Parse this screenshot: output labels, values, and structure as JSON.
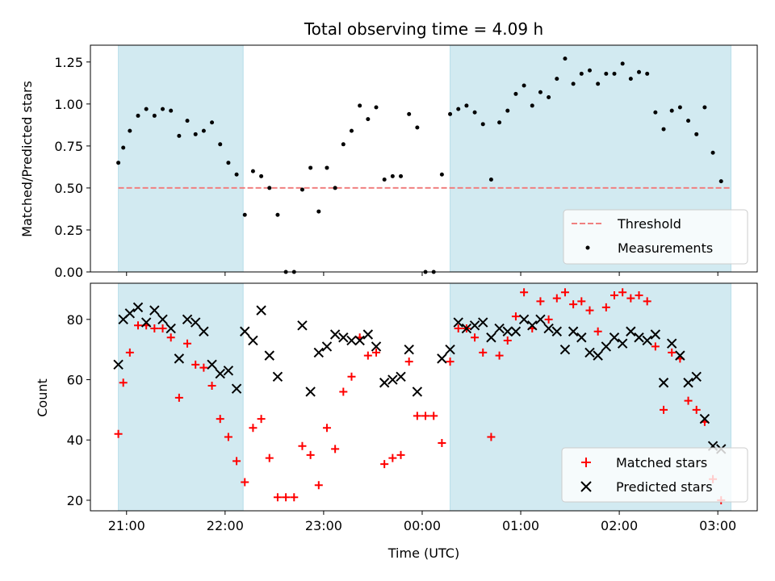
{
  "title": "Total observing time = 4.09 h",
  "colors": {
    "shade": "#add8e6",
    "threshold": "#f08080",
    "measurement": "#000000",
    "matched": "#ff0000",
    "predicted": "#000000"
  },
  "chart_data": [
    {
      "type": "scatter",
      "ylabel": "Matched/Predicted stars",
      "ylim": [
        0,
        1.35
      ],
      "yticks": [
        "0.00",
        "0.25",
        "0.50",
        "0.75",
        "1.00",
        "1.25"
      ],
      "ytick_values": [
        0,
        0.25,
        0.5,
        0.75,
        1.0,
        1.25
      ],
      "legend_position": "lower-right",
      "legend": [
        "Threshold",
        "Measurements"
      ],
      "threshold": 0.5,
      "shaded_intervals": [
        [
          "20:55",
          "22:11"
        ],
        [
          "00:17",
          "03:08"
        ]
      ],
      "series": [
        {
          "name": "Measurements",
          "points": [
            [
              "20:55",
              0.65
            ],
            [
              "20:58",
              0.74
            ],
            [
              "21:02",
              0.84
            ],
            [
              "21:07",
              0.93
            ],
            [
              "21:12",
              0.97
            ],
            [
              "21:17",
              0.93
            ],
            [
              "21:22",
              0.97
            ],
            [
              "21:27",
              0.96
            ],
            [
              "21:32",
              0.81
            ],
            [
              "21:37",
              0.9
            ],
            [
              "21:42",
              0.82
            ],
            [
              "21:47",
              0.84
            ],
            [
              "21:52",
              0.89
            ],
            [
              "21:57",
              0.76
            ],
            [
              "22:02",
              0.65
            ],
            [
              "22:07",
              0.58
            ],
            [
              "22:12",
              0.34
            ],
            [
              "22:17",
              0.6
            ],
            [
              "22:22",
              0.57
            ],
            [
              "22:27",
              0.5
            ],
            [
              "22:32",
              0.34
            ],
            [
              "22:37",
              0.0
            ],
            [
              "22:42",
              0.0
            ],
            [
              "22:47",
              0.49
            ],
            [
              "22:52",
              0.62
            ],
            [
              "22:57",
              0.36
            ],
            [
              "23:02",
              0.62
            ],
            [
              "23:07",
              0.5
            ],
            [
              "23:12",
              0.76
            ],
            [
              "23:17",
              0.84
            ],
            [
              "23:22",
              0.99
            ],
            [
              "23:27",
              0.91
            ],
            [
              "23:32",
              0.98
            ],
            [
              "23:37",
              0.55
            ],
            [
              "23:42",
              0.57
            ],
            [
              "23:47",
              0.57
            ],
            [
              "23:52",
              0.94
            ],
            [
              "23:57",
              0.86
            ],
            [
              "00:02",
              0.0
            ],
            [
              "00:07",
              0.0
            ],
            [
              "00:12",
              0.58
            ],
            [
              "00:17",
              0.94
            ],
            [
              "00:22",
              0.97
            ],
            [
              "00:27",
              0.99
            ],
            [
              "00:32",
              0.95
            ],
            [
              "00:37",
              0.88
            ],
            [
              "00:42",
              0.55
            ],
            [
              "00:47",
              0.89
            ],
            [
              "00:52",
              0.96
            ],
            [
              "00:57",
              1.06
            ],
            [
              "01:02",
              1.11
            ],
            [
              "01:07",
              0.99
            ],
            [
              "01:12",
              1.07
            ],
            [
              "01:17",
              1.04
            ],
            [
              "01:22",
              1.15
            ],
            [
              "01:27",
              1.27
            ],
            [
              "01:32",
              1.12
            ],
            [
              "01:37",
              1.18
            ],
            [
              "01:42",
              1.2
            ],
            [
              "01:47",
              1.12
            ],
            [
              "01:52",
              1.18
            ],
            [
              "01:57",
              1.18
            ],
            [
              "02:02",
              1.24
            ],
            [
              "02:07",
              1.15
            ],
            [
              "02:12",
              1.19
            ],
            [
              "02:17",
              1.18
            ],
            [
              "02:22",
              0.95
            ],
            [
              "02:27",
              0.85
            ],
            [
              "02:32",
              0.96
            ],
            [
              "02:37",
              0.98
            ],
            [
              "02:42",
              0.9
            ],
            [
              "02:47",
              0.82
            ],
            [
              "02:52",
              0.98
            ],
            [
              "02:57",
              0.71
            ],
            [
              "03:02",
              0.54
            ]
          ]
        }
      ]
    },
    {
      "type": "scatter",
      "xlabel": "Time (UTC)",
      "ylabel": "Count",
      "ylim": [
        16.5,
        92
      ],
      "yticks": [
        "20",
        "40",
        "60",
        "80"
      ],
      "ytick_values": [
        20,
        40,
        60,
        80
      ],
      "xticks": [
        "21:00",
        "22:00",
        "23:00",
        "00:00",
        "01:00",
        "02:00",
        "03:00"
      ],
      "legend_position": "lower-right",
      "legend": [
        "Matched stars",
        "Predicted stars"
      ],
      "shaded_intervals": [
        [
          "20:55",
          "22:11"
        ],
        [
          "00:17",
          "03:08"
        ]
      ],
      "series": [
        {
          "name": "Matched stars",
          "points": [
            [
              "20:55",
              42
            ],
            [
              "20:58",
              59
            ],
            [
              "21:02",
              69
            ],
            [
              "21:07",
              78
            ],
            [
              "21:12",
              78
            ],
            [
              "21:17",
              77
            ],
            [
              "21:22",
              77
            ],
            [
              "21:27",
              74
            ],
            [
              "21:32",
              54
            ],
            [
              "21:37",
              72
            ],
            [
              "21:42",
              65
            ],
            [
              "21:47",
              64
            ],
            [
              "21:52",
              58
            ],
            [
              "21:57",
              47
            ],
            [
              "22:02",
              41
            ],
            [
              "22:07",
              33
            ],
            [
              "22:12",
              26
            ],
            [
              "22:17",
              44
            ],
            [
              "22:22",
              47
            ],
            [
              "22:27",
              34
            ],
            [
              "22:32",
              21
            ],
            [
              "22:37",
              21
            ],
            [
              "22:42",
              21
            ],
            [
              "22:47",
              38
            ],
            [
              "22:52",
              35
            ],
            [
              "22:57",
              25
            ],
            [
              "23:02",
              44
            ],
            [
              "23:07",
              37
            ],
            [
              "23:12",
              56
            ],
            [
              "23:17",
              61
            ],
            [
              "23:22",
              74
            ],
            [
              "23:27",
              68
            ],
            [
              "23:32",
              69
            ],
            [
              "23:37",
              32
            ],
            [
              "23:42",
              34
            ],
            [
              "23:47",
              35
            ],
            [
              "23:52",
              66
            ],
            [
              "23:57",
              48
            ],
            [
              "00:02",
              48
            ],
            [
              "00:07",
              48
            ],
            [
              "00:12",
              39
            ],
            [
              "00:17",
              66
            ],
            [
              "00:22",
              77
            ],
            [
              "00:27",
              77
            ],
            [
              "00:32",
              74
            ],
            [
              "00:37",
              69
            ],
            [
              "00:42",
              41
            ],
            [
              "00:47",
              68
            ],
            [
              "00:52",
              73
            ],
            [
              "00:57",
              81
            ],
            [
              "01:02",
              89
            ],
            [
              "01:07",
              77
            ],
            [
              "01:12",
              86
            ],
            [
              "01:17",
              80
            ],
            [
              "01:22",
              87
            ],
            [
              "01:27",
              89
            ],
            [
              "01:32",
              85
            ],
            [
              "01:37",
              86
            ],
            [
              "01:42",
              83
            ],
            [
              "01:47",
              76
            ],
            [
              "01:52",
              84
            ],
            [
              "01:57",
              88
            ],
            [
              "02:02",
              89
            ],
            [
              "02:07",
              87
            ],
            [
              "02:12",
              88
            ],
            [
              "02:17",
              86
            ],
            [
              "02:22",
              71
            ],
            [
              "02:27",
              50
            ],
            [
              "02:32",
              69
            ],
            [
              "02:37",
              67
            ],
            [
              "02:42",
              53
            ],
            [
              "02:47",
              50
            ],
            [
              "02:52",
              46
            ],
            [
              "02:57",
              27
            ],
            [
              "03:02",
              20
            ]
          ]
        },
        {
          "name": "Predicted stars",
          "points": [
            [
              "20:55",
              65
            ],
            [
              "20:58",
              80
            ],
            [
              "21:02",
              82
            ],
            [
              "21:07",
              84
            ],
            [
              "21:12",
              79
            ],
            [
              "21:17",
              83
            ],
            [
              "21:22",
              80
            ],
            [
              "21:27",
              77
            ],
            [
              "21:32",
              67
            ],
            [
              "21:37",
              80
            ],
            [
              "21:42",
              79
            ],
            [
              "21:47",
              76
            ],
            [
              "21:52",
              65
            ],
            [
              "21:57",
              62
            ],
            [
              "22:02",
              63
            ],
            [
              "22:07",
              57
            ],
            [
              "22:12",
              76
            ],
            [
              "22:17",
              73
            ],
            [
              "22:22",
              83
            ],
            [
              "22:27",
              68
            ],
            [
              "22:32",
              61
            ],
            [
              "22:47",
              78
            ],
            [
              "22:52",
              56
            ],
            [
              "22:57",
              69
            ],
            [
              "23:02",
              71
            ],
            [
              "23:07",
              75
            ],
            [
              "23:12",
              74
            ],
            [
              "23:17",
              73
            ],
            [
              "23:22",
              73
            ],
            [
              "23:27",
              75
            ],
            [
              "23:32",
              71
            ],
            [
              "23:37",
              59
            ],
            [
              "23:42",
              60
            ],
            [
              "23:47",
              61
            ],
            [
              "23:52",
              70
            ],
            [
              "23:57",
              56
            ],
            [
              "00:12",
              67
            ],
            [
              "00:17",
              70
            ],
            [
              "00:22",
              79
            ],
            [
              "00:27",
              77
            ],
            [
              "00:32",
              78
            ],
            [
              "00:37",
              79
            ],
            [
              "00:42",
              74
            ],
            [
              "00:47",
              77
            ],
            [
              "00:52",
              76
            ],
            [
              "00:57",
              76
            ],
            [
              "01:02",
              80
            ],
            [
              "01:07",
              78
            ],
            [
              "01:12",
              80
            ],
            [
              "01:17",
              77
            ],
            [
              "01:22",
              76
            ],
            [
              "01:27",
              70
            ],
            [
              "01:32",
              76
            ],
            [
              "01:37",
              74
            ],
            [
              "01:42",
              69
            ],
            [
              "01:47",
              68
            ],
            [
              "01:52",
              71
            ],
            [
              "01:57",
              74
            ],
            [
              "02:02",
              72
            ],
            [
              "02:07",
              76
            ],
            [
              "02:12",
              74
            ],
            [
              "02:17",
              73
            ],
            [
              "02:22",
              75
            ],
            [
              "02:27",
              59
            ],
            [
              "02:32",
              72
            ],
            [
              "02:37",
              68
            ],
            [
              "02:42",
              59
            ],
            [
              "02:47",
              61
            ],
            [
              "02:52",
              47
            ],
            [
              "02:57",
              38
            ],
            [
              "03:02",
              37
            ]
          ]
        }
      ]
    }
  ]
}
